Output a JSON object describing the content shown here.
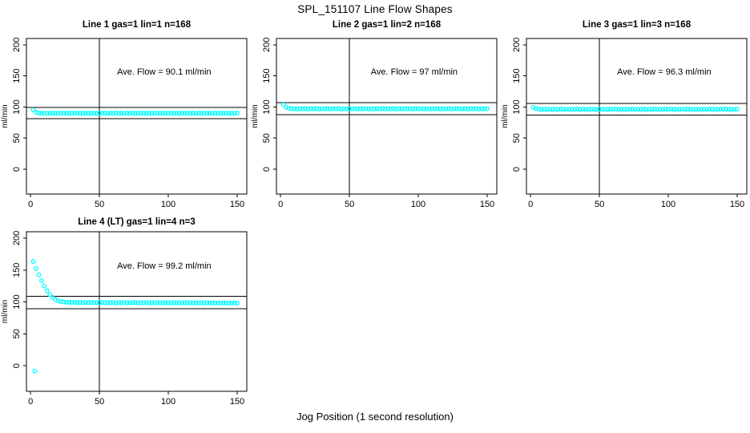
{
  "page": {
    "title": "SPL_151107  Line Flow Shapes",
    "xlabel": "Jog Position (1 second resolution)"
  },
  "colors": {
    "points": "#00ffff",
    "axis": "#000000",
    "background": "#ffffff"
  },
  "chart_data": [
    {
      "type": "scatter",
      "title": "Line 1 gas=1 lin=1 n=168",
      "annotation": "Ave. Flow =  90.1  ml/min",
      "ave_flow": 90.1,
      "ylabel": "ml/min",
      "xlim": [
        0,
        150
      ],
      "ylim": [
        0,
        200
      ],
      "xticks": [
        0,
        50,
        100,
        150
      ],
      "yticks": [
        0,
        50,
        100,
        150,
        200
      ],
      "vline_x": 50,
      "hlines": [
        99.1,
        81.1
      ],
      "grid_row": 0,
      "grid_col": 0,
      "x0": 2,
      "dx": 2,
      "y": [
        95.5,
        91.5,
        90.2,
        89.8,
        90.3,
        89.6,
        90.1,
        89.7,
        90.2,
        89.5,
        90.3,
        89.8,
        90.0,
        89.6,
        90.2,
        89.9,
        90.4,
        89.6,
        90.1,
        89.8,
        90.2,
        89.5,
        90.0,
        89.7,
        90.3,
        89.8,
        90.1,
        89.6,
        90.2,
        89.9,
        90.4,
        89.7,
        90.0,
        89.6,
        90.2,
        89.8,
        90.3,
        89.5,
        90.1,
        89.8,
        90.2,
        89.6,
        90.0,
        89.7,
        90.3,
        89.9,
        90.1,
        89.6,
        90.2,
        89.8,
        90.4,
        89.7,
        90.0,
        89.5,
        90.2,
        89.8,
        90.3,
        89.6,
        90.1,
        89.7,
        90.2,
        89.5,
        90.0,
        89.8,
        90.3,
        89.7,
        90.1,
        89.6,
        90.2,
        89.9,
        90.3,
        89.6,
        90.0,
        89.8,
        90.1
      ],
      "extra_points": []
    },
    {
      "type": "scatter",
      "title": "Line 2 gas=1 lin=2 n=168",
      "annotation": "Ave. Flow =  97  ml/min",
      "ave_flow": 97,
      "ylabel": "ml/min",
      "xlim": [
        0,
        150
      ],
      "ylim": [
        0,
        200
      ],
      "xticks": [
        0,
        50,
        100,
        150
      ],
      "yticks": [
        0,
        50,
        100,
        150,
        200
      ],
      "vline_x": 50,
      "hlines": [
        106.7,
        87.3
      ],
      "grid_row": 0,
      "grid_col": 1,
      "x0": 2,
      "dx": 2,
      "y": [
        103.5,
        99.5,
        98.0,
        97.3,
        97.0,
        96.6,
        97.2,
        96.8,
        97.3,
        96.5,
        97.1,
        96.8,
        97.2,
        96.6,
        97.0,
        96.9,
        97.3,
        96.6,
        97.1,
        96.8,
        97.2,
        96.5,
        97.0,
        96.7,
        97.3,
        96.8,
        97.1,
        96.6,
        97.2,
        96.9,
        97.4,
        96.7,
        97.0,
        96.6,
        97.2,
        96.8,
        97.3,
        96.5,
        97.1,
        96.8,
        97.2,
        96.6,
        97.0,
        96.7,
        97.3,
        96.9,
        97.1,
        96.6,
        97.2,
        96.8,
        97.4,
        96.7,
        97.0,
        96.5,
        97.2,
        96.8,
        97.3,
        96.6,
        97.1,
        96.7,
        97.2,
        96.5,
        97.0,
        96.8,
        97.3,
        96.7,
        97.1,
        96.6,
        97.2,
        96.9,
        97.3,
        96.6,
        97.0,
        96.8,
        97.1
      ],
      "extra_points": []
    },
    {
      "type": "scatter",
      "title": "Line 3 gas=1 lin=3 n=168",
      "annotation": "Ave. Flow =  96.3  ml/min",
      "ave_flow": 96.3,
      "ylabel": "ml/min",
      "xlim": [
        0,
        150
      ],
      "ylim": [
        0,
        200
      ],
      "xticks": [
        0,
        50,
        100,
        150
      ],
      "yticks": [
        0,
        50,
        100,
        150,
        200
      ],
      "vline_x": 50,
      "hlines": [
        105.9,
        86.7
      ],
      "grid_row": 0,
      "grid_col": 2,
      "x0": 2,
      "dx": 2,
      "y": [
        99.0,
        97.2,
        96.5,
        96.1,
        96.6,
        95.9,
        96.4,
        96.0,
        96.5,
        95.8,
        96.6,
        96.1,
        96.3,
        95.9,
        96.5,
        96.2,
        96.7,
        95.9,
        96.4,
        96.1,
        96.5,
        95.8,
        96.3,
        96.0,
        96.6,
        96.1,
        96.4,
        95.9,
        96.5,
        96.2,
        96.7,
        96.0,
        96.3,
        95.9,
        96.5,
        96.1,
        96.6,
        95.8,
        96.4,
        96.1,
        96.5,
        95.9,
        96.3,
        96.0,
        96.6,
        96.2,
        96.4,
        95.9,
        96.5,
        96.1,
        96.7,
        96.0,
        96.3,
        95.8,
        96.5,
        96.1,
        96.6,
        95.9,
        96.4,
        96.0,
        96.5,
        95.8,
        96.3,
        96.1,
        96.6,
        96.0,
        96.4,
        95.9,
        96.5,
        96.2,
        96.6,
        95.9,
        96.3,
        96.1,
        96.4
      ],
      "extra_points": []
    },
    {
      "type": "scatter",
      "title": "Line 4 (LT) gas=1 lin=4 n=3",
      "annotation": "Ave. Flow =  99.2  ml/min",
      "ave_flow": 99.2,
      "ylabel": "ml/min",
      "xlim": [
        0,
        150
      ],
      "ylim": [
        0,
        200
      ],
      "xticks": [
        0,
        50,
        100,
        150
      ],
      "yticks": [
        0,
        50,
        100,
        150,
        200
      ],
      "vline_x": 50,
      "hlines": [
        109.1,
        89.3
      ],
      "grid_row": 1,
      "grid_col": 0,
      "x0": 2,
      "dx": 2,
      "y": [
        163.5,
        152.5,
        142.5,
        133.5,
        125.0,
        117.5,
        111.5,
        107.0,
        103.8,
        101.8,
        100.6,
        100.0,
        99.6,
        99.4,
        99.3,
        99.5,
        98.8,
        99.4,
        98.6,
        99.2,
        98.9,
        99.5,
        98.7,
        99.1,
        98.8,
        99.4,
        98.6,
        99.0,
        98.8,
        99.3,
        98.5,
        99.1,
        98.7,
        99.2,
        98.6,
        99.0,
        98.8,
        99.3,
        98.5,
        99.0,
        98.7,
        99.2,
        98.5,
        98.9,
        98.6,
        99.1,
        98.4,
        98.9,
        98.6,
        99.0,
        98.4,
        98.8,
        98.5,
        99.0,
        98.3,
        98.8,
        98.5,
        98.9,
        98.3,
        98.7,
        98.4,
        98.8,
        98.2,
        98.6,
        98.4,
        98.8,
        98.2,
        98.5,
        98.3,
        98.7,
        98.1,
        98.5,
        98.3,
        98.6,
        98.2
      ],
      "extra_points": [
        [
          3,
          -8.5
        ]
      ]
    }
  ]
}
